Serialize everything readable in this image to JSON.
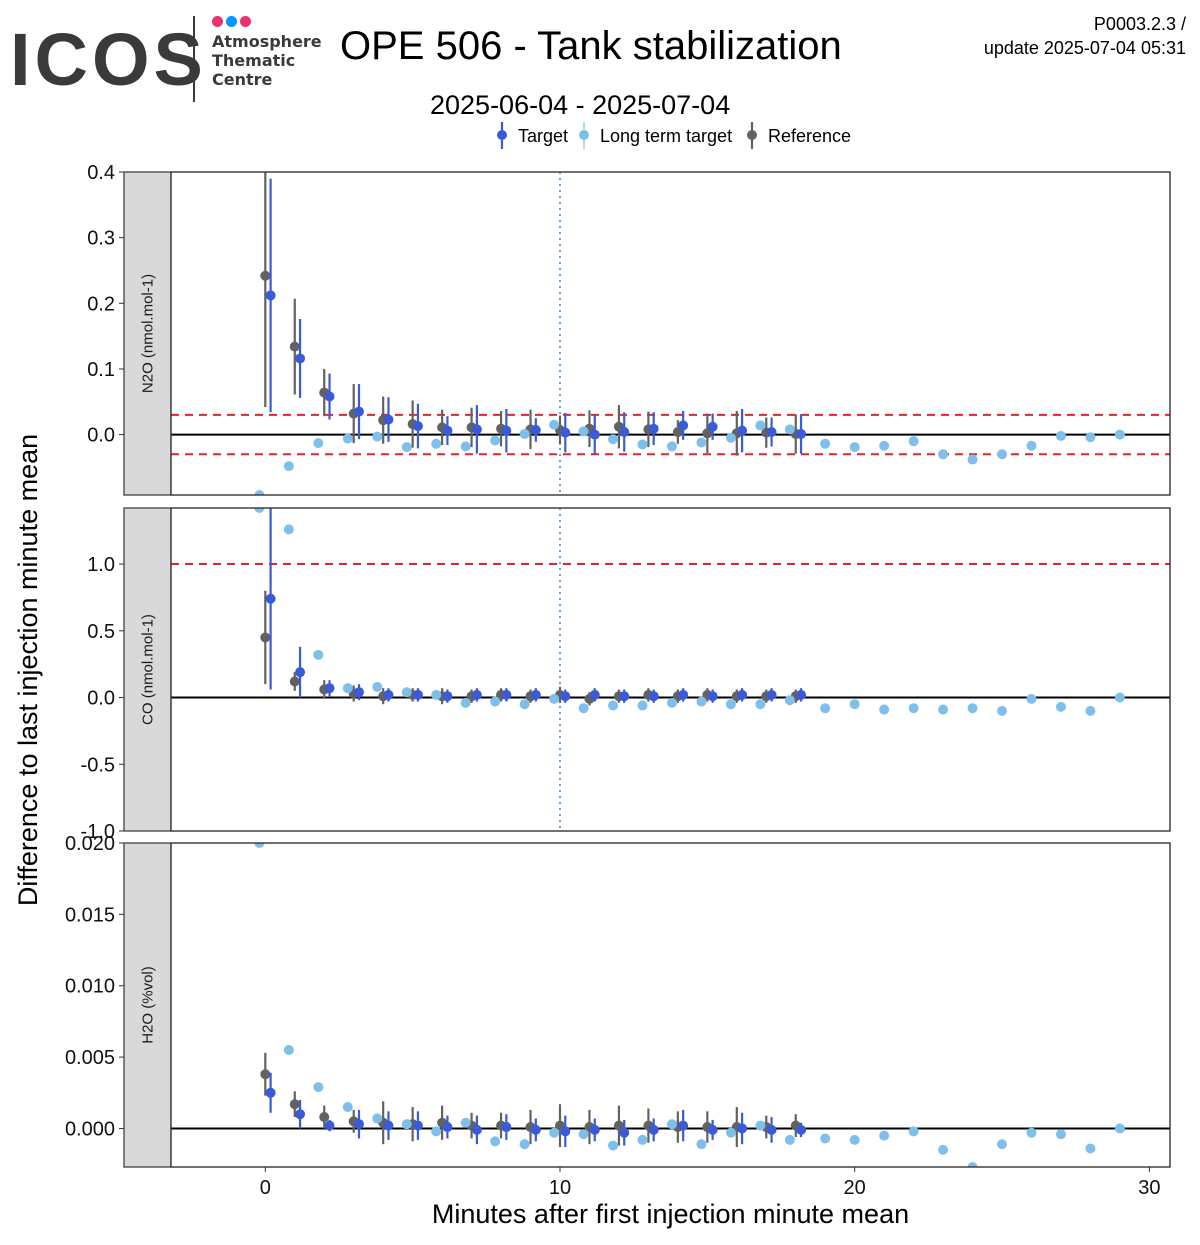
{
  "header": {
    "logo_word": "ICOS",
    "logo_line1": "Atmosphere",
    "logo_line2": "Thematic",
    "logo_line3": "Centre",
    "logo_dot_colors": [
      "#e8336d",
      "#0099ff",
      "#e8336d"
    ],
    "title": "OPE 506 - Tank stabilization",
    "subtitle": "2025-06-04 - 2025-07-04",
    "version": "P0003.2.3 /",
    "update": "update  2025-07-04 05:31"
  },
  "chart_data": {
    "type": "scatter",
    "xlabel": "Minutes after first injection minute mean",
    "ylabel": "Difference to last injection minute mean",
    "xlim": [
      -3.2,
      30.7
    ],
    "x_ticks": [
      0,
      10,
      20,
      30
    ],
    "x_tick_labels": [
      "0",
      "10",
      "20",
      "30"
    ],
    "legend": {
      "position": "top",
      "entries": [
        {
          "name": "Target",
          "color": "#3b5bd6"
        },
        {
          "name": "Long term target",
          "color": "#7fbfec"
        },
        {
          "name": "Reference",
          "color": "#626262"
        }
      ]
    },
    "vline_x": 10,
    "panels": [
      {
        "strip_label": "N2O (nmol.mol-1)",
        "ylim": [
          -0.092,
          0.4
        ],
        "y_ticks": [
          0.0,
          0.1,
          0.2,
          0.3,
          0.4
        ],
        "y_tick_labels": [
          "0.0",
          "0.1",
          "0.2",
          "0.3",
          "0.4"
        ],
        "threshold_lines": [
          0.03,
          -0.03
        ],
        "series": [
          {
            "name": "Reference",
            "x": [
              0,
              1,
              2,
              3,
              4,
              5,
              6,
              7,
              8,
              9,
              10,
              11,
              12,
              13,
              14,
              15,
              16,
              17,
              18
            ],
            "y": [
              0.242,
              0.134,
              0.064,
              0.032,
              0.022,
              0.016,
              0.011,
              0.011,
              0.009,
              0.008,
              0.007,
              0.009,
              0.012,
              0.008,
              0.004,
              0.002,
              0.002,
              0.003,
              0.001
            ],
            "err": [
              0.2,
              0.073,
              0.036,
              0.045,
              0.036,
              0.036,
              0.027,
              0.03,
              0.027,
              0.03,
              0.022,
              0.028,
              0.033,
              0.027,
              0.018,
              0.03,
              0.034,
              0.023,
              0.03
            ]
          },
          {
            "name": "Target",
            "x": [
              0,
              1,
              2,
              3,
              4,
              5,
              6,
              7,
              8,
              9,
              10,
              11,
              12,
              13,
              14,
              15,
              16,
              17,
              18
            ],
            "y": [
              0.212,
              0.116,
              0.058,
              0.035,
              0.023,
              0.013,
              0.006,
              0.008,
              0.006,
              0.007,
              0.003,
              0.0,
              0.004,
              0.009,
              0.014,
              0.012,
              0.006,
              0.004,
              0.001
            ],
            "err": [
              0.178,
              0.06,
              0.035,
              0.042,
              0.034,
              0.034,
              0.022,
              0.037,
              0.033,
              0.018,
              0.03,
              0.03,
              0.03,
              0.025,
              0.022,
              0.02,
              0.033,
              0.022,
              0.03
            ]
          },
          {
            "name": "Long term target",
            "x": [
              -0.2,
              0.8,
              1.8,
              2.8,
              3.8,
              4.8,
              5.8,
              6.8,
              7.8,
              8.8,
              9.8,
              10.8,
              11.8,
              12.8,
              13.8,
              14.8,
              15.8,
              16.8,
              17.8,
              19,
              20,
              21,
              22,
              23,
              24,
              25,
              26,
              27,
              28,
              29
            ],
            "y": [
              -0.092,
              -0.048,
              -0.013,
              -0.006,
              -0.003,
              -0.019,
              -0.014,
              -0.018,
              -0.009,
              0.001,
              0.015,
              0.005,
              -0.007,
              -0.015,
              -0.018,
              -0.012,
              -0.005,
              0.014,
              0.008,
              -0.014,
              -0.019,
              -0.017,
              -0.01,
              -0.03,
              -0.038,
              -0.03,
              -0.017,
              -0.002,
              -0.004,
              0.0
            ]
          }
        ]
      },
      {
        "strip_label": "CO (nmol.mol-1)",
        "ylim": [
          -1.0,
          1.42
        ],
        "y_ticks": [
          -1.0,
          -0.5,
          0.0,
          0.5,
          1.0
        ],
        "y_tick_labels": [
          "-1.0",
          "-0.5",
          "0.0",
          "0.5",
          "1.0"
        ],
        "threshold_lines": [
          1.0
        ],
        "series": [
          {
            "name": "Reference",
            "x": [
              0,
              1,
              2,
              3,
              4,
              5,
              6,
              7,
              8,
              9,
              10,
              11,
              12,
              13,
              14,
              15,
              16,
              17,
              18
            ],
            "y": [
              0.45,
              0.12,
              0.06,
              0.03,
              0.01,
              0.02,
              0.01,
              0.01,
              0.02,
              0.01,
              0.02,
              -0.01,
              0.01,
              0.02,
              0.01,
              0.02,
              0.01,
              0.01,
              0.01
            ],
            "err": [
              0.35,
              0.07,
              0.07,
              0.06,
              0.06,
              0.05,
              0.06,
              0.05,
              0.05,
              0.05,
              0.06,
              0.05,
              0.05,
              0.05,
              0.05,
              0.05,
              0.05,
              0.05,
              0.05
            ]
          },
          {
            "name": "Target",
            "x": [
              0,
              1,
              2,
              3,
              4,
              5,
              6,
              7,
              8,
              9,
              10,
              11,
              12,
              13,
              14,
              15,
              16,
              17,
              18
            ],
            "y": [
              0.74,
              0.19,
              0.07,
              0.04,
              0.02,
              0.02,
              0.01,
              0.02,
              0.02,
              0.02,
              0.01,
              0.02,
              0.01,
              0.01,
              0.02,
              0.01,
              0.02,
              0.02,
              0.02
            ],
            "err": [
              0.68,
              0.19,
              0.06,
              0.06,
              0.05,
              0.05,
              0.05,
              0.05,
              0.05,
              0.05,
              0.05,
              0.05,
              0.05,
              0.05,
              0.05,
              0.05,
              0.05,
              0.05,
              0.05
            ]
          },
          {
            "name": "Long term target",
            "x": [
              -0.2,
              0.8,
              1.8,
              2.8,
              3.8,
              4.8,
              5.8,
              6.8,
              7.8,
              8.8,
              9.8,
              10.8,
              11.8,
              12.8,
              13.8,
              14.8,
              15.8,
              16.8,
              17.8,
              19,
              20,
              21,
              22,
              23,
              24,
              25,
              26,
              27,
              28,
              29
            ],
            "y": [
              1.42,
              1.26,
              0.32,
              0.07,
              0.08,
              0.04,
              0.02,
              -0.04,
              -0.03,
              -0.05,
              -0.01,
              -0.08,
              -0.06,
              -0.06,
              -0.04,
              -0.03,
              -0.05,
              -0.05,
              -0.02,
              -0.08,
              -0.05,
              -0.09,
              -0.08,
              -0.09,
              -0.08,
              -0.1,
              -0.01,
              -0.07,
              -0.1,
              0.0
            ]
          }
        ]
      },
      {
        "strip_label": "H2O (%vol)",
        "ylim": [
          -0.0027,
          0.02
        ],
        "y_ticks": [
          0.0,
          0.005,
          0.01,
          0.015,
          0.02
        ],
        "y_tick_labels": [
          "0.000",
          "0.005",
          "0.010",
          "0.015",
          "0.020"
        ],
        "threshold_lines": [],
        "series": [
          {
            "name": "Reference",
            "x": [
              0,
              1,
              2,
              3,
              4,
              5,
              6,
              7,
              8,
              9,
              10,
              11,
              12,
              13,
              14,
              15,
              16,
              17,
              18
            ],
            "y": [
              0.0038,
              0.0017,
              0.0008,
              0.0005,
              0.0004,
              0.0003,
              0.0004,
              0.0002,
              0.0002,
              0.0001,
              0.0002,
              0.0001,
              0.0002,
              0.0002,
              0.0001,
              0.0001,
              0.0001,
              0.0001,
              0.0002
            ],
            "err": [
              0.0015,
              0.0009,
              0.0008,
              0.0008,
              0.0015,
              0.0012,
              0.0012,
              0.0009,
              0.0009,
              0.0012,
              0.0015,
              0.0012,
              0.0014,
              0.0012,
              0.0011,
              0.0011,
              0.0014,
              0.0008,
              0.0008
            ]
          },
          {
            "name": "Target",
            "x": [
              0,
              1,
              2,
              3,
              4,
              5,
              6,
              7,
              8,
              9,
              10,
              11,
              12,
              13,
              14,
              15,
              16,
              17,
              18
            ],
            "y": [
              0.0025,
              0.001,
              0.0002,
              0.0003,
              0.0002,
              0.0002,
              0.0001,
              -0.0001,
              0.0001,
              -0.0001,
              -0.0002,
              -0.0001,
              -0.0003,
              -0.0001,
              0.0002,
              -0.0001,
              0.0,
              -0.0001,
              -0.0001
            ],
            "err": [
              0.0014,
              0.001,
              0.0004,
              0.001,
              0.001,
              0.001,
              0.0008,
              0.001,
              0.0009,
              0.0008,
              0.0011,
              0.0008,
              0.0009,
              0.0008,
              0.0011,
              0.0007,
              0.0011,
              0.0009,
              0.0005
            ]
          },
          {
            "name": "Long term target",
            "x": [
              -0.2,
              0.8,
              1.8,
              2.8,
              3.8,
              4.8,
              5.8,
              6.8,
              7.8,
              8.8,
              9.8,
              10.8,
              11.8,
              12.8,
              13.8,
              14.8,
              15.8,
              16.8,
              17.8,
              19,
              20,
              21,
              22,
              23,
              24,
              25,
              26,
              27,
              28,
              29
            ],
            "y": [
              0.02,
              0.0055,
              0.0029,
              0.0015,
              0.0007,
              0.0003,
              -0.0002,
              0.0004,
              -0.0009,
              -0.0011,
              -0.0003,
              -0.0004,
              -0.0012,
              -0.0008,
              0.0003,
              -0.0011,
              -0.0003,
              0.0002,
              -0.0008,
              -0.0007,
              -0.0008,
              -0.0005,
              -0.0002,
              -0.0015,
              -0.0027,
              -0.0011,
              -0.0003,
              -0.0004,
              -0.0014,
              0.0
            ]
          }
        ]
      }
    ]
  }
}
